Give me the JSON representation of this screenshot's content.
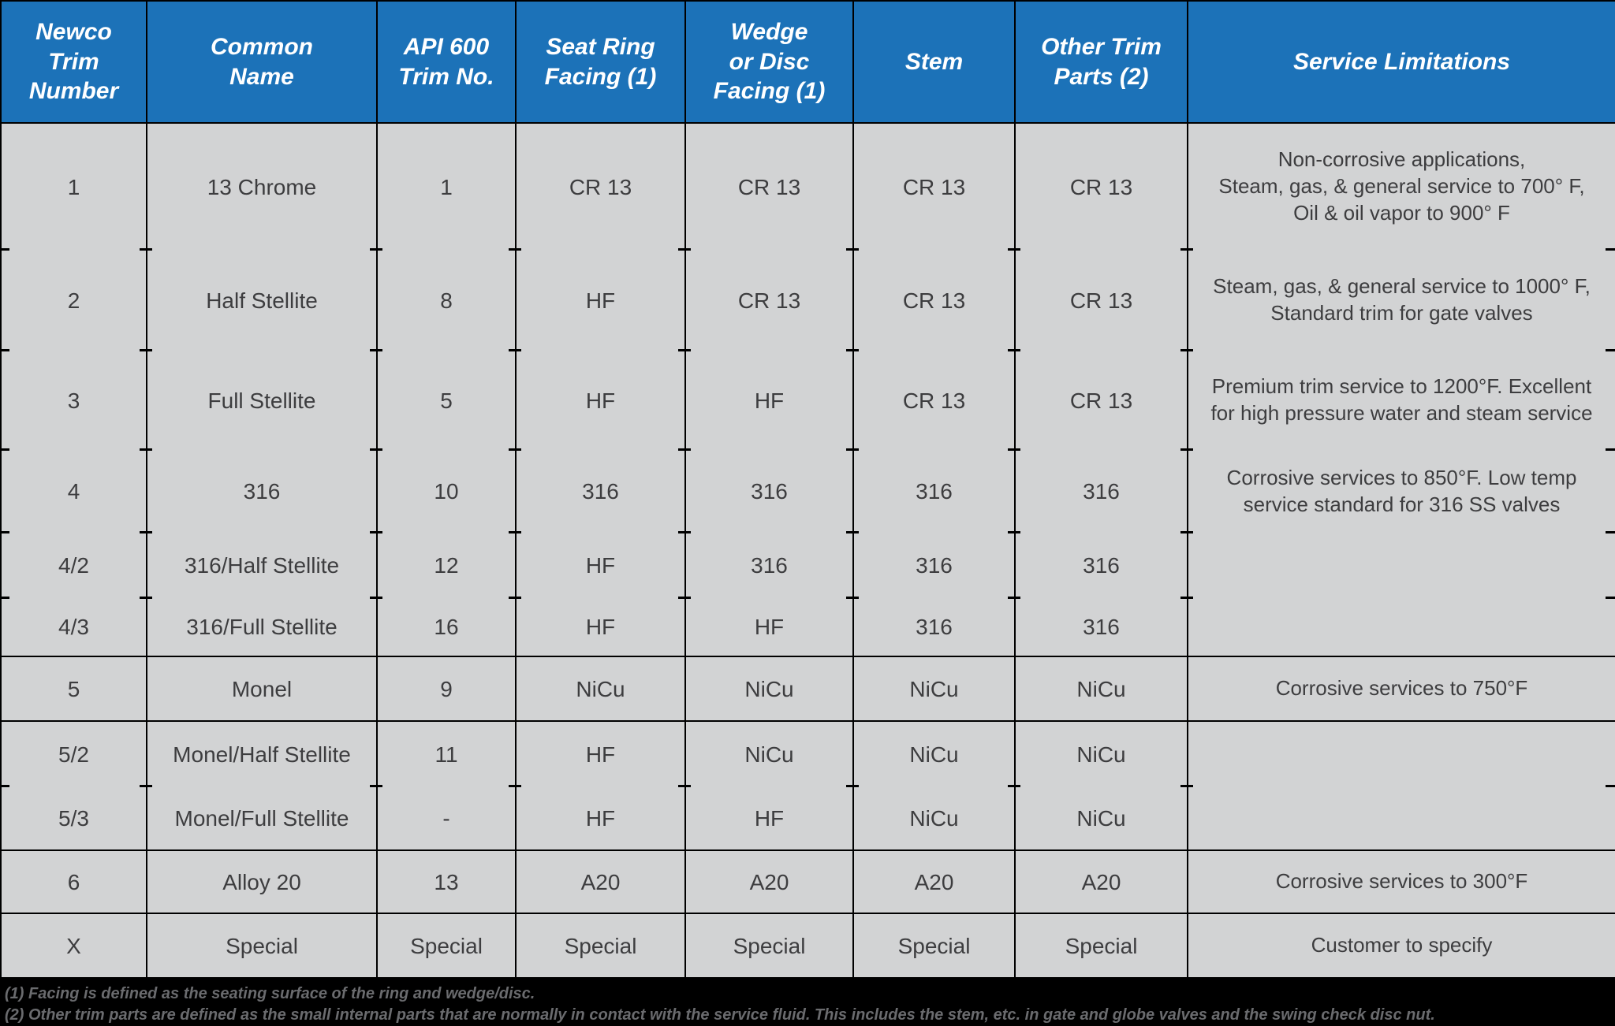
{
  "title": "Newco Trim Number Table",
  "colors": {
    "header_bg": "#1c72b8",
    "row_bg": "#d2d3d4",
    "line": "#000000",
    "text": "#3d3d3f",
    "header_text": "#ffffff",
    "footer_bg": "#000000",
    "footer_text": "#6a6b6e"
  },
  "header": {
    "columns": [
      "Newco\nTrim\nNumber",
      "Common\nName",
      "API 600\nTrim No.",
      "Seat Ring\nFacing (1)",
      "Wedge\nor Disc\nFacing (1)",
      "Stem",
      "Other Trim\nParts (2)",
      "Service Limitations"
    ]
  },
  "table": {
    "rows": [
      {
        "id": "1",
        "trim": "1",
        "common": "13 Chrome",
        "api": "1",
        "seat": "CR 13",
        "wedge": "CR 13",
        "stem": "CR 13",
        "other": "CR 13",
        "service": "Non-corrosive applications,\nSteam, gas, & general service to 700° F,\nOil & oil vapor to 900° F",
        "group_end": false
      },
      {
        "id": "2",
        "trim": "2",
        "common": "Half Stellite",
        "api": "8",
        "seat": "HF",
        "wedge": "CR 13",
        "stem": "CR 13",
        "other": "CR 13",
        "service": "Steam, gas, & general service to 1000° F,\nStandard trim for gate valves",
        "group_end": false
      },
      {
        "id": "3",
        "trim": "3",
        "common": "Full Stellite",
        "api": "5",
        "seat": "HF",
        "wedge": "HF",
        "stem": "CR 13",
        "other": "CR 13",
        "service": "Premium trim service to 1200°F. Excellent\nfor high pressure water and steam service",
        "group_end": false
      },
      {
        "id": "4",
        "trim": "4",
        "common": "316",
        "api": "10",
        "seat": "316",
        "wedge": "316",
        "stem": "316",
        "other": "316",
        "service": "Corrosive services to 850°F. Low temp\nservice standard for 316 SS valves",
        "group_end": false
      },
      {
        "id": "4/2",
        "trim": "4/2",
        "common": "316/Half Stellite",
        "api": "12",
        "seat": "HF",
        "wedge": "316",
        "stem": "316",
        "other": "316",
        "service": "",
        "group_end": false
      },
      {
        "id": "4/3",
        "trim": "4/3",
        "common": "316/Full Stellite",
        "api": "16",
        "seat": "HF",
        "wedge": "HF",
        "stem": "316",
        "other": "316",
        "service": "",
        "group_end": true
      },
      {
        "id": "5",
        "trim": "5",
        "common": "Monel",
        "api": "9",
        "seat": "NiCu",
        "wedge": "NiCu",
        "stem": "NiCu",
        "other": "NiCu",
        "service": "Corrosive services to 750°F",
        "group_end": true
      },
      {
        "id": "5/2",
        "trim": "5/2",
        "common": "Monel/Half Stellite",
        "api": "11",
        "seat": "HF",
        "wedge": "NiCu",
        "stem": "NiCu",
        "other": "NiCu",
        "service": "",
        "group_end": false
      },
      {
        "id": "5/3",
        "trim": "5/3",
        "common": "Monel/Full Stellite",
        "api": "-",
        "seat": "HF",
        "wedge": "HF",
        "stem": "NiCu",
        "other": "NiCu",
        "service": "",
        "group_end": true
      },
      {
        "id": "6",
        "trim": "6",
        "common": "Alloy 20",
        "api": "13",
        "seat": "A20",
        "wedge": "A20",
        "stem": "A20",
        "other": "A20",
        "service": "Corrosive services to 300°F",
        "group_end": true
      },
      {
        "id": "X",
        "trim": "X",
        "common": "Special",
        "api": "Special",
        "seat": "Special",
        "wedge": "Special",
        "stem": "Special",
        "other": "Special",
        "service": "Customer to specify",
        "group_end": true
      }
    ]
  },
  "footnotes": [
    "(1) Facing is defined as the seating surface of the ring and wedge/disc.",
    "(2) Other trim parts are defined as the small internal parts that are normally in contact with the service fluid. This includes the stem, etc. in gate and globe valves and the swing check disc nut."
  ],
  "chart_data": {
    "type": "table",
    "columns": [
      "Newco Trim Number",
      "Common Name",
      "API 600 Trim No.",
      "Seat Ring Facing (1)",
      "Wedge or Disc Facing (1)",
      "Stem",
      "Other Trim Parts (2)",
      "Service Limitations"
    ],
    "rows": [
      [
        "1",
        "13 Chrome",
        "1",
        "CR 13",
        "CR 13",
        "CR 13",
        "CR 13",
        "Non-corrosive applications, Steam, gas, & general service to 700° F, Oil & oil vapor to 900° F"
      ],
      [
        "2",
        "Half Stellite",
        "8",
        "HF",
        "CR 13",
        "CR 13",
        "CR 13",
        "Steam, gas, & general service to 1000° F, Standard trim for gate valves"
      ],
      [
        "3",
        "Full Stellite",
        "5",
        "HF",
        "HF",
        "CR 13",
        "CR 13",
        "Premium trim service to 1200°F. Excellent for high pressure water and steam service"
      ],
      [
        "4",
        "316",
        "10",
        "316",
        "316",
        "316",
        "316",
        "Corrosive services to 850°F. Low temp service standard for 316 SS valves"
      ],
      [
        "4/2",
        "316/Half Stellite",
        "12",
        "HF",
        "316",
        "316",
        "316",
        ""
      ],
      [
        "4/3",
        "316/Full Stellite",
        "16",
        "HF",
        "HF",
        "316",
        "316",
        ""
      ],
      [
        "5",
        "Monel",
        "9",
        "NiCu",
        "NiCu",
        "NiCu",
        "NiCu",
        "Corrosive services to 750°F"
      ],
      [
        "5/2",
        "Monel/Half Stellite",
        "11",
        "HF",
        "NiCu",
        "NiCu",
        "NiCu",
        ""
      ],
      [
        "5/3",
        "Monel/Full Stellite",
        "-",
        "HF",
        "HF",
        "NiCu",
        "NiCu",
        ""
      ],
      [
        "6",
        "Alloy 20",
        "13",
        "A20",
        "A20",
        "A20",
        "A20",
        "Corrosive services to 300°F"
      ],
      [
        "X",
        "Special",
        "Special",
        "Special",
        "Special",
        "Special",
        "Special",
        "Customer to specify"
      ]
    ]
  }
}
